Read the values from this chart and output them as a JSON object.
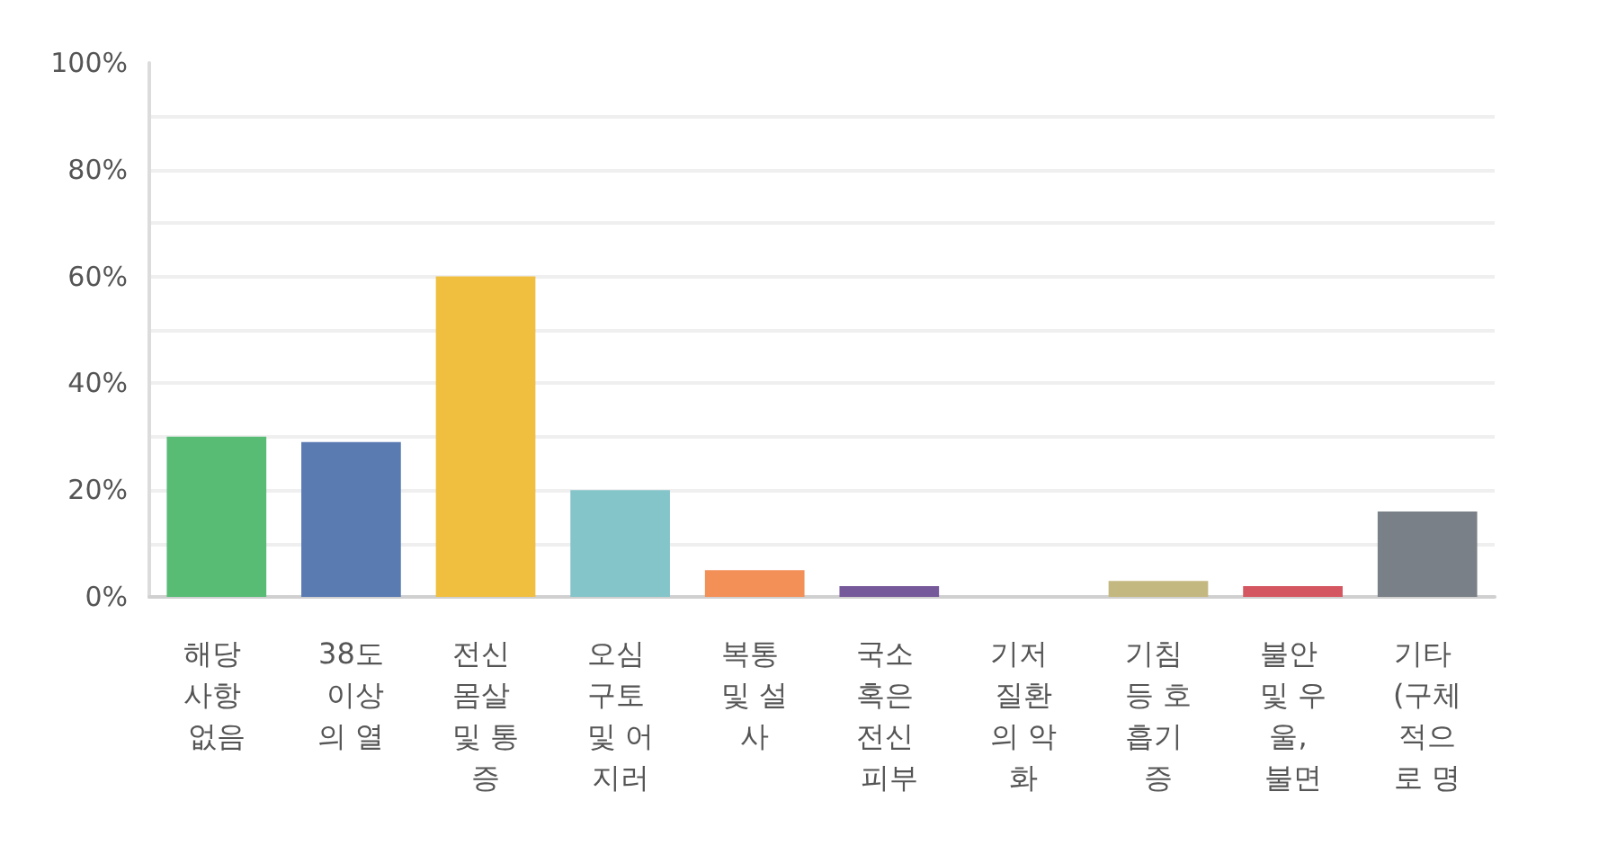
{
  "chart_data": {
    "type": "bar",
    "categories": [
      "해당 사항 없음",
      "38도 이상의 열",
      "전신 몸살 및 통증",
      "오심 구토 및 어지러",
      "복통 및 설사",
      "국소 혹은 전신 피부",
      "기저 질환의 악화",
      "기침 등 호흡기 증",
      "불안 및 우울, 불면",
      "기타 (구체적으로 명"
    ],
    "values": [
      30,
      29,
      60,
      20,
      5,
      2,
      0,
      3,
      2,
      16
    ],
    "colors": [
      "#58bc75",
      "#5a7ab2",
      "#f0bf40",
      "#84c5ca",
      "#f29058",
      "#76599a",
      null,
      "#c4b881",
      "#d45660",
      "#7a8087"
    ],
    "ylim": [
      0,
      100
    ],
    "yticks": [
      {
        "value": 0,
        "label": "0%"
      },
      {
        "value": 10,
        "label": null
      },
      {
        "value": 20,
        "label": "20%"
      },
      {
        "value": 30,
        "label": null
      },
      {
        "value": 40,
        "label": "40%"
      },
      {
        "value": 50,
        "label": null
      },
      {
        "value": 60,
        "label": "60%"
      },
      {
        "value": 70,
        "label": null
      },
      {
        "value": 80,
        "label": "80%"
      },
      {
        "value": 90,
        "label": null
      },
      {
        "value": 100,
        "label": "100%"
      }
    ],
    "grid": "y"
  }
}
